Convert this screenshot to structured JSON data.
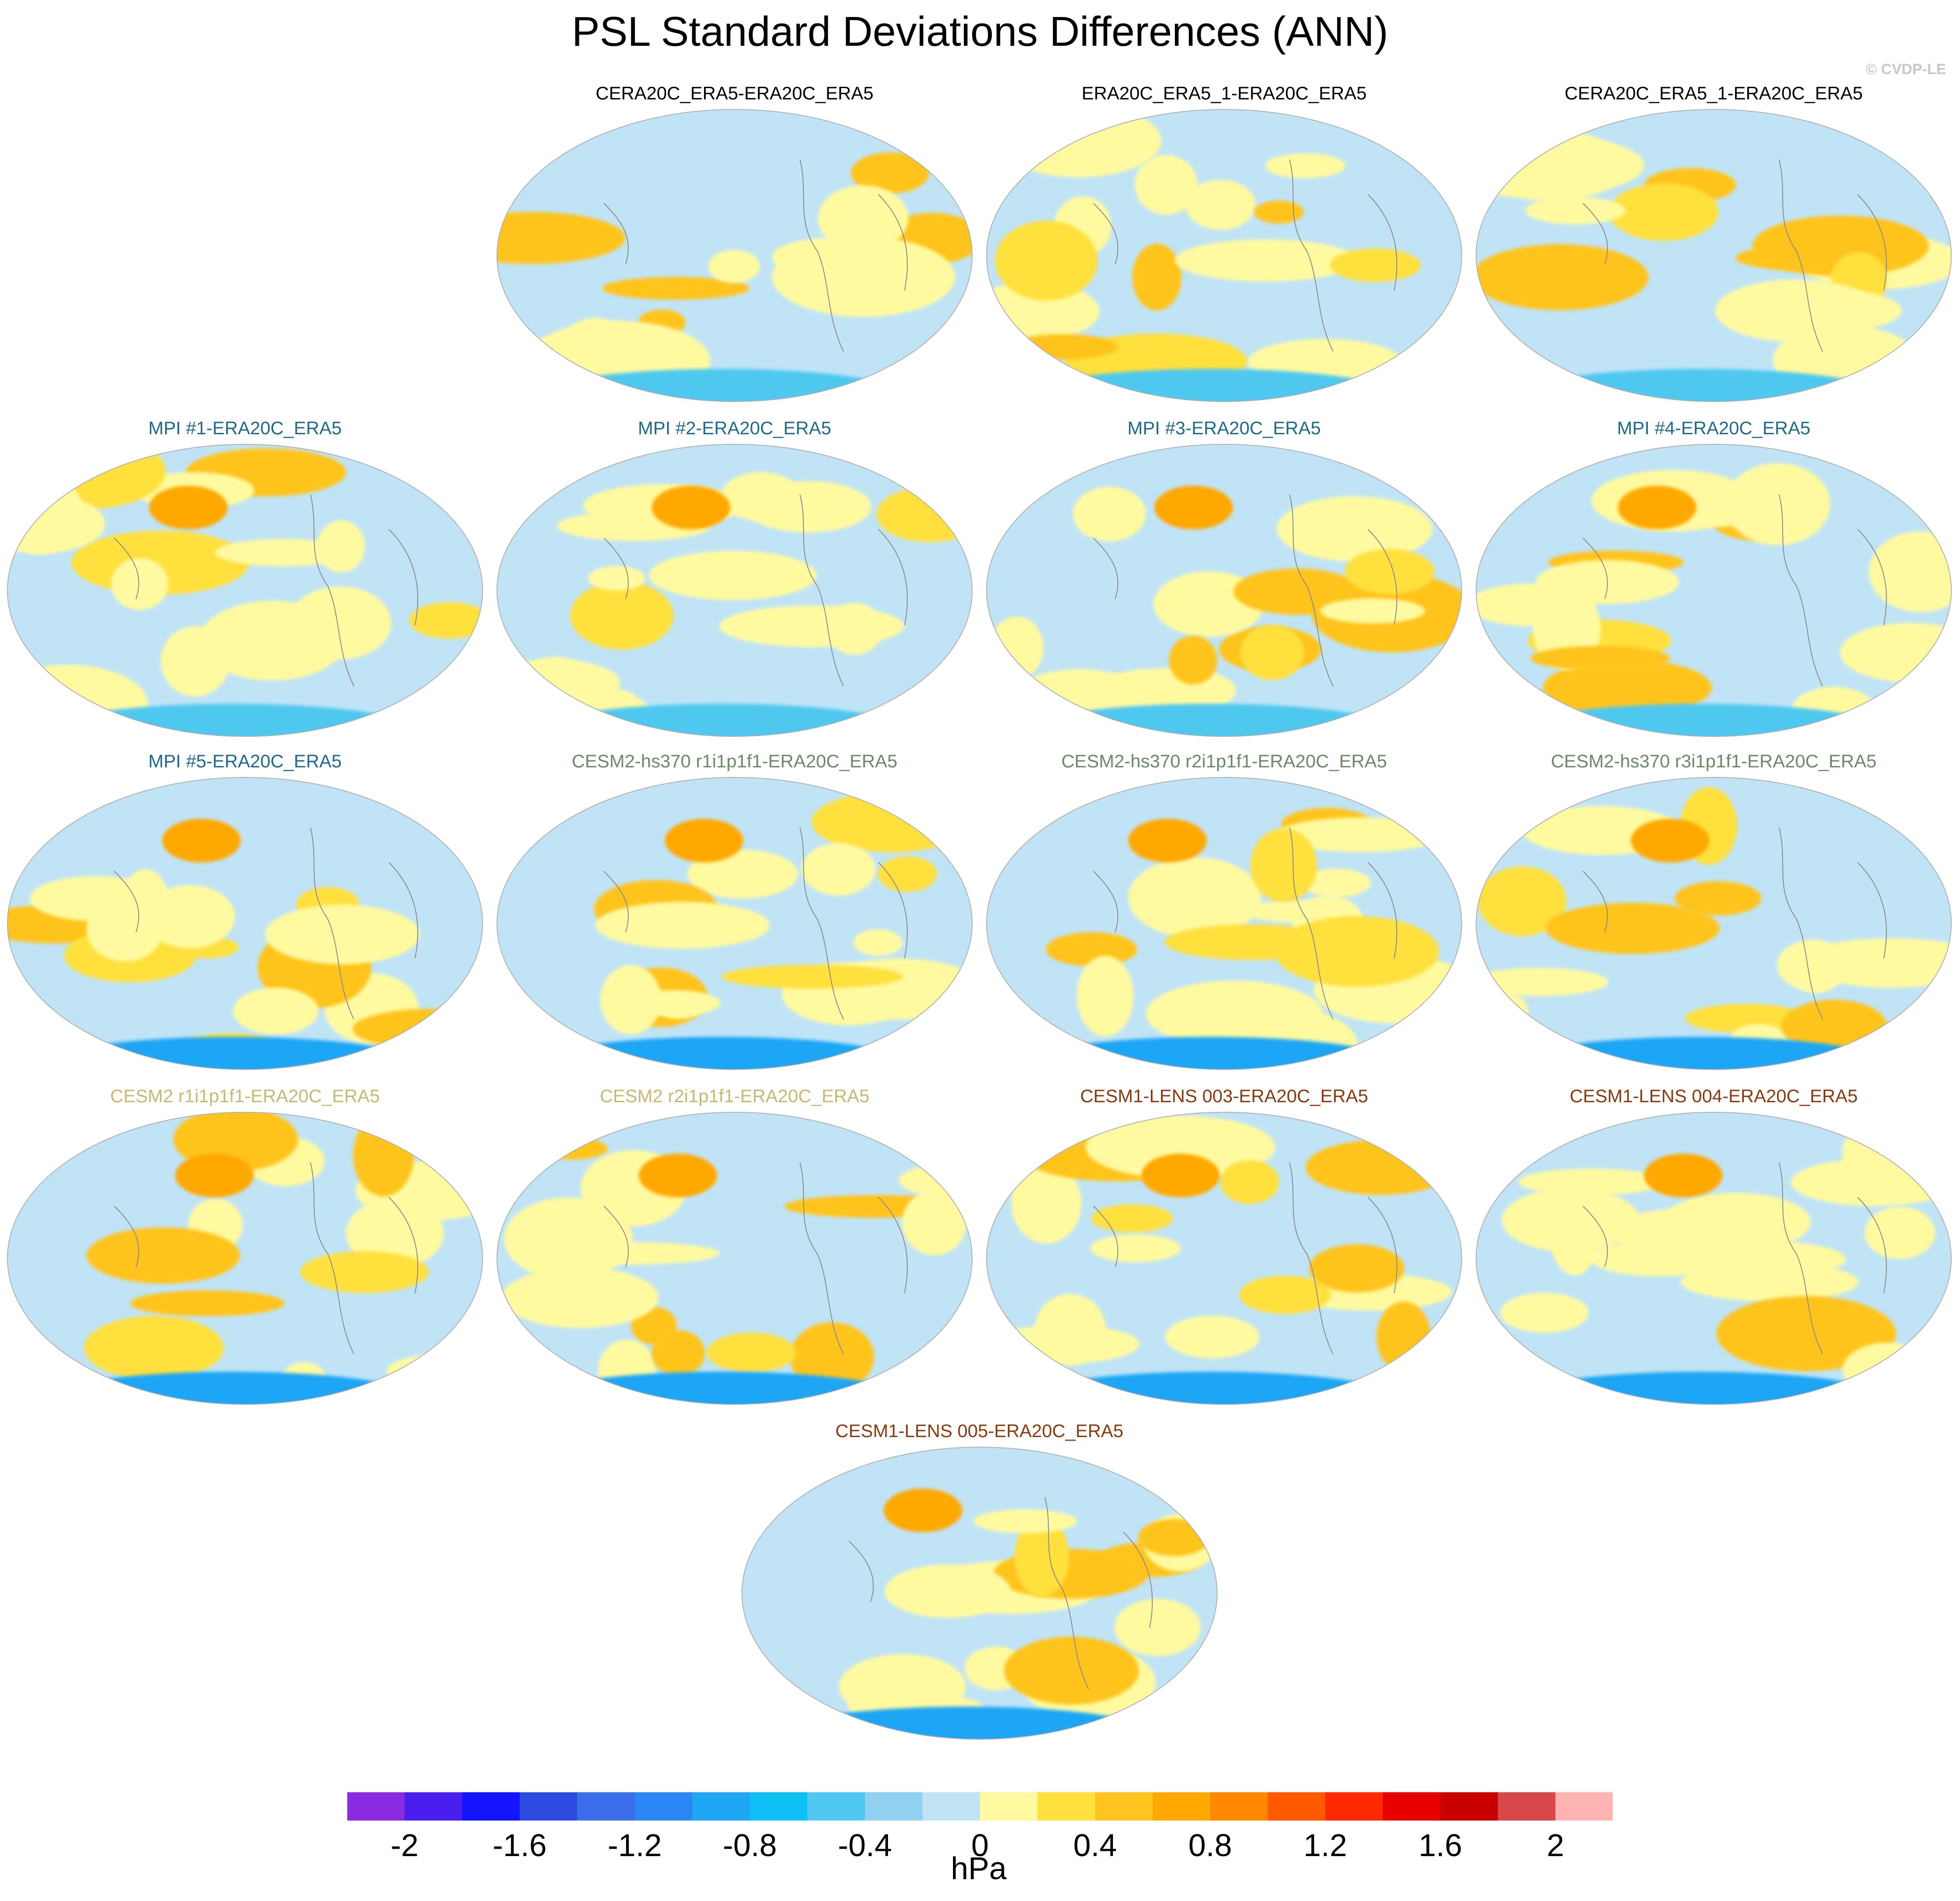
{
  "figure": {
    "title": "PSL Standard Deviations Differences (ANN)",
    "copyright": "© CVDP-LE"
  },
  "chart_data": {
    "type": "heatmap",
    "projection": "global map panels (Robinson-like)",
    "panels": [
      {
        "title": "CERA20C_ERA5-ERA20C_ERA5",
        "title_color": "#000000",
        "row": 0,
        "col": 1
      },
      {
        "title": "ERA20C_ERA5_1-ERA20C_ERA5",
        "title_color": "#000000",
        "row": 0,
        "col": 2
      },
      {
        "title": "CERA20C_ERA5_1-ERA20C_ERA5",
        "title_color": "#000000",
        "row": 0,
        "col": 3
      },
      {
        "title": "MPI #1-ERA20C_ERA5",
        "title_color": "#1f6a8a",
        "row": 1,
        "col": 0
      },
      {
        "title": "MPI #2-ERA20C_ERA5",
        "title_color": "#1f6a8a",
        "row": 1,
        "col": 1
      },
      {
        "title": "MPI #3-ERA20C_ERA5",
        "title_color": "#1f6a8a",
        "row": 1,
        "col": 2
      },
      {
        "title": "MPI #4-ERA20C_ERA5",
        "title_color": "#1f6a8a",
        "row": 1,
        "col": 3
      },
      {
        "title": "MPI #5-ERA20C_ERA5",
        "title_color": "#1f6a8a",
        "row": 2,
        "col": 0
      },
      {
        "title": "CESM2-hs370 r1i1p1f1-ERA20C_ERA5",
        "title_color": "#6a8a6a",
        "row": 2,
        "col": 1
      },
      {
        "title": "CESM2-hs370 r2i1p1f1-ERA20C_ERA5",
        "title_color": "#6a8a6a",
        "row": 2,
        "col": 2
      },
      {
        "title": "CESM2-hs370 r3i1p1f1-ERA20C_ERA5",
        "title_color": "#6a8a6a",
        "row": 2,
        "col": 3
      },
      {
        "title": "CESM2 r1i1p1f1-ERA20C_ERA5",
        "title_color": "#c8b870",
        "row": 3,
        "col": 0
      },
      {
        "title": "CESM2 r2i1p1f1-ERA20C_ERA5",
        "title_color": "#c8b870",
        "row": 3,
        "col": 1
      },
      {
        "title": "CESM1-LENS 003-ERA20C_ERA5",
        "title_color": "#8a3a10",
        "row": 3,
        "col": 2
      },
      {
        "title": "CESM1-LENS 004-ERA20C_ERA5",
        "title_color": "#8a3a10",
        "row": 3,
        "col": 3
      },
      {
        "title": "CESM1-LENS 005-ERA20C_ERA5",
        "title_color": "#8a3a10",
        "row": 4,
        "col": 1.5
      }
    ],
    "colorbar": {
      "units": "hPa",
      "range": [
        -2.2,
        2.2
      ],
      "step": 0.2,
      "colors": [
        "#8a2be2",
        "#4b1ef0",
        "#1414ff",
        "#2e4de0",
        "#3a6ee8",
        "#2a86f2",
        "#1ea6f5",
        "#0fc0f5",
        "#50c8f0",
        "#90d0f0",
        "#c0e4f6",
        "#fffaa0",
        "#ffe03c",
        "#ffc41e",
        "#ffa800",
        "#ff8800",
        "#ff5a00",
        "#ff2800",
        "#e80000",
        "#c80000",
        "#d84848",
        "#ffb4b4"
      ],
      "tick_labels": [
        "-2",
        "-1.6",
        "-1.2",
        "-0.8",
        "-0.4",
        "0",
        "0.4",
        "0.8",
        "1.2",
        "1.6",
        "2"
      ]
    }
  }
}
